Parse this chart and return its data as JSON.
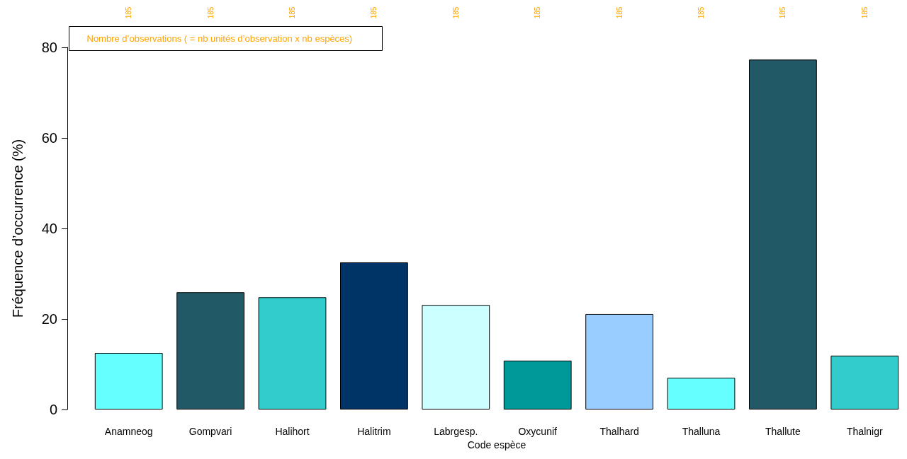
{
  "chart_data": {
    "type": "bar",
    "xlabel": "Code espèce",
    "ylabel": "Fréquence d’occurrence (%)",
    "categories": [
      "Anamneog",
      "Gompvari",
      "Halihort",
      "Halitrim",
      "Labrgesp.",
      "Oxycunif",
      "Thalhard",
      "Thalluna",
      "Thallute",
      "Thalnigr"
    ],
    "values": [
      12.5,
      25.9,
      24.8,
      32.5,
      23.1,
      10.8,
      21.1,
      7.0,
      77.3,
      11.9
    ],
    "colors": [
      "#66ffff",
      "#225966",
      "#33cccc",
      "#003366",
      "#ccffff",
      "#009999",
      "#99ccff",
      "#66ffff",
      "#225966",
      "#33cccc"
    ],
    "ylim": [
      0,
      80
    ],
    "yticks": [
      0,
      20,
      40,
      60,
      80
    ],
    "grid": false,
    "annotations": [
      "Nombre d’observations ( = nb unités d’observation x nb espèces)",
      "185",
      "185",
      "185",
      "185",
      "185",
      "185",
      "185",
      "185",
      "185",
      "185"
    ]
  }
}
